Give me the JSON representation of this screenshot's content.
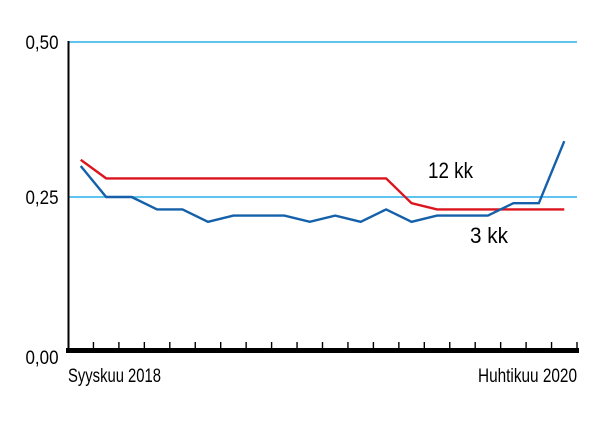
{
  "chart_data": {
    "type": "line",
    "title": "",
    "n_points": 20,
    "x_axis": {
      "start_label": "Syyskuu 2018",
      "end_label": "Huhtikuu 2020",
      "tick_count": 20
    },
    "y_axis": {
      "tick_labels": [
        "0,00",
        "0,25",
        "0,50"
      ],
      "range": [
        0,
        0.5
      ],
      "gridlines_at": [
        0.25,
        0.5
      ]
    },
    "series": [
      {
        "name": "12 kk",
        "color": "#dc141e",
        "values": [
          0.31,
          0.28,
          0.28,
          0.28,
          0.28,
          0.28,
          0.28,
          0.28,
          0.28,
          0.28,
          0.28,
          0.28,
          0.28,
          0.24,
          0.23,
          0.23,
          0.23,
          0.23,
          0.23,
          0.23
        ]
      },
      {
        "name": "3 kk",
        "color": "#1460aa",
        "values": [
          0.3,
          0.25,
          0.25,
          0.23,
          0.23,
          0.21,
          0.22,
          0.22,
          0.22,
          0.21,
          0.22,
          0.21,
          0.23,
          0.21,
          0.22,
          0.22,
          0.22,
          0.24,
          0.24,
          0.34
        ]
      }
    ],
    "colors": {
      "gridline": "#5fc3f0",
      "axis": "#000000",
      "text": "#000000",
      "background": "#ffffff"
    },
    "legend_position": "inline-annotations"
  }
}
